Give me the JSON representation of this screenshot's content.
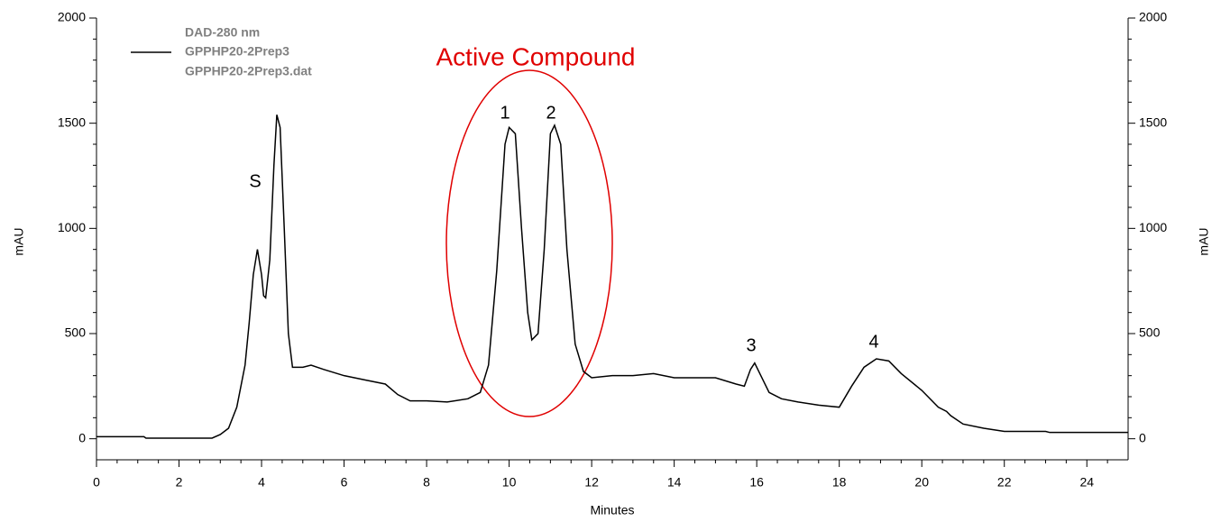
{
  "chart_data": {
    "type": "line",
    "x_label": "Minutes",
    "y_label": "mAU",
    "y2_label": "mAU",
    "legend_header": "DAD-280 nm",
    "legend_footer": "GPPHP20-2Prep3.dat",
    "xlim": [
      0,
      25
    ],
    "xticks": [
      0,
      2,
      4,
      6,
      8,
      10,
      12,
      14,
      16,
      18,
      20,
      22,
      24
    ],
    "ylim": [
      -100,
      2000
    ],
    "yticks": [
      0,
      500,
      1000,
      1500,
      2000
    ],
    "y2lim": [
      -100,
      2000
    ],
    "y2ticks": [
      0,
      500,
      1000,
      1500,
      2000
    ],
    "annotations": [
      "Active Compound",
      "S",
      "1",
      "2",
      "3",
      "4"
    ],
    "x": [
      0,
      1.15,
      1.2,
      2.8,
      3.0,
      3.2,
      3.4,
      3.6,
      3.7,
      3.8,
      3.9,
      4.0,
      4.05,
      4.1,
      4.2,
      4.3,
      4.37,
      4.45,
      4.55,
      4.65,
      4.75,
      5.0,
      5.2,
      5.5,
      6.0,
      6.5,
      7.0,
      7.3,
      7.6,
      8.0,
      8.5,
      9.0,
      9.3,
      9.5,
      9.7,
      9.9,
      10.0,
      10.15,
      10.3,
      10.45,
      10.55,
      10.7,
      10.85,
      11.0,
      11.1,
      11.25,
      11.4,
      11.6,
      11.8,
      12.0,
      12.5,
      13.0,
      13.5,
      14.0,
      15.0,
      15.5,
      15.7,
      15.85,
      15.95,
      16.1,
      16.3,
      16.6,
      17.0,
      17.5,
      18.0,
      18.3,
      18.6,
      18.9,
      19.2,
      19.5,
      20.0,
      20.4,
      20.6,
      20.7,
      21.0,
      21.5,
      22.0,
      23.0,
      23.1,
      25
    ],
    "series": [
      {
        "name": "GPPHP20-2Prep3",
        "color": "#000000",
        "values": [
          10,
          10,
          3,
          3,
          20,
          50,
          150,
          350,
          550,
          780,
          900,
          780,
          680,
          670,
          850,
          1300,
          1540,
          1480,
          1000,
          500,
          340,
          340,
          350,
          330,
          300,
          280,
          260,
          210,
          180,
          180,
          175,
          190,
          220,
          350,
          800,
          1400,
          1480,
          1450,
          1000,
          600,
          470,
          500,
          900,
          1450,
          1490,
          1400,
          900,
          450,
          320,
          290,
          300,
          300,
          310,
          290,
          290,
          260,
          250,
          330,
          360,
          300,
          220,
          190,
          175,
          160,
          150,
          250,
          340,
          380,
          370,
          310,
          230,
          150,
          130,
          110,
          70,
          50,
          35,
          35,
          30,
          30
        ]
      }
    ]
  }
}
